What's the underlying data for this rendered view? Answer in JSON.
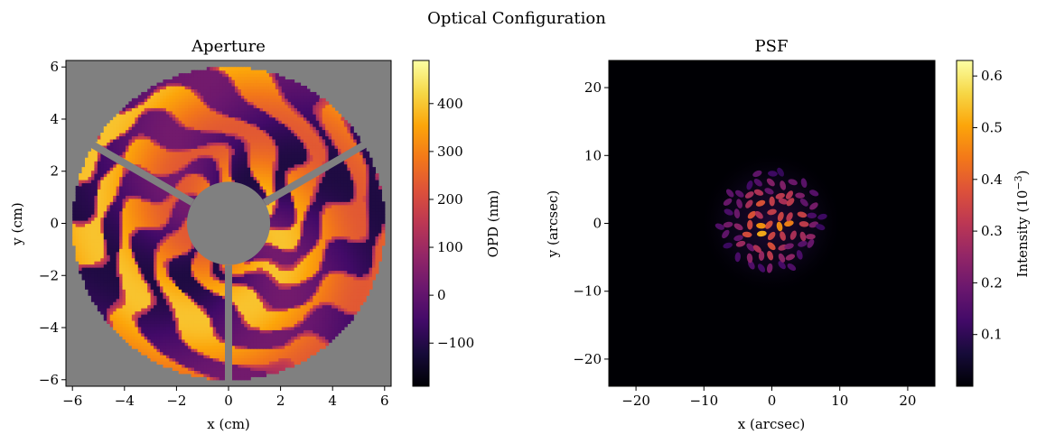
{
  "figure": {
    "title": "Optical Configuration"
  },
  "colors": {
    "background": "#ffffff",
    "axis": "#000000",
    "aperture_fill": "#808080",
    "psf_background": "#000004"
  },
  "colormap": "inferno",
  "chart_data": [
    {
      "type": "heatmap",
      "title": "Aperture",
      "xlabel": "x (cm)",
      "ylabel": "y (cm)",
      "xlim": [
        -6.25,
        6.25
      ],
      "ylim": [
        -6.25,
        6.25
      ],
      "xticks": [
        -6,
        -4,
        -2,
        0,
        2,
        4,
        6
      ],
      "yticks": [
        -6,
        -4,
        -2,
        0,
        2,
        4,
        6
      ],
      "xtick_labels": [
        "−6",
        "−4",
        "−2",
        "0",
        "2",
        "4",
        "6"
      ],
      "ytick_labels": [
        "−6",
        "−4",
        "−2",
        "0",
        "2",
        "4",
        "6"
      ],
      "outer_radius": 6.0,
      "inner_radius": 1.6,
      "spider_angles_deg": [
        270,
        30,
        150
      ],
      "colorbar": {
        "label": "OPD (nm)",
        "min": -190,
        "max": 490,
        "ticks": [
          -100,
          0,
          100,
          200,
          300,
          400
        ],
        "tick_labels": [
          "−100",
          "0",
          "100",
          "200",
          "300",
          "400"
        ]
      },
      "grid": false
    },
    {
      "type": "heatmap",
      "title": "PSF",
      "xlabel": "x (arcsec)",
      "ylabel": "y (arcsec)",
      "xlim": [
        -24,
        24
      ],
      "ylim": [
        -24,
        24
      ],
      "xticks": [
        -20,
        -10,
        0,
        10,
        20
      ],
      "yticks": [
        -20,
        -10,
        0,
        10,
        20
      ],
      "xtick_labels": [
        "−20",
        "−10",
        "0",
        "10",
        "20"
      ],
      "ytick_labels": [
        "−20",
        "−10",
        "0",
        "10",
        "20"
      ],
      "core_radius": 8,
      "colorbar": {
        "label": "Intensity (10",
        "label_exponent": "−3",
        "label_suffix": ")",
        "min": 0.0,
        "max": 0.63,
        "ticks": [
          0.1,
          0.2,
          0.3,
          0.4,
          0.5,
          0.6
        ],
        "tick_labels": [
          "0.1",
          "0.2",
          "0.3",
          "0.4",
          "0.5",
          "0.6"
        ]
      },
      "grid": false
    }
  ]
}
